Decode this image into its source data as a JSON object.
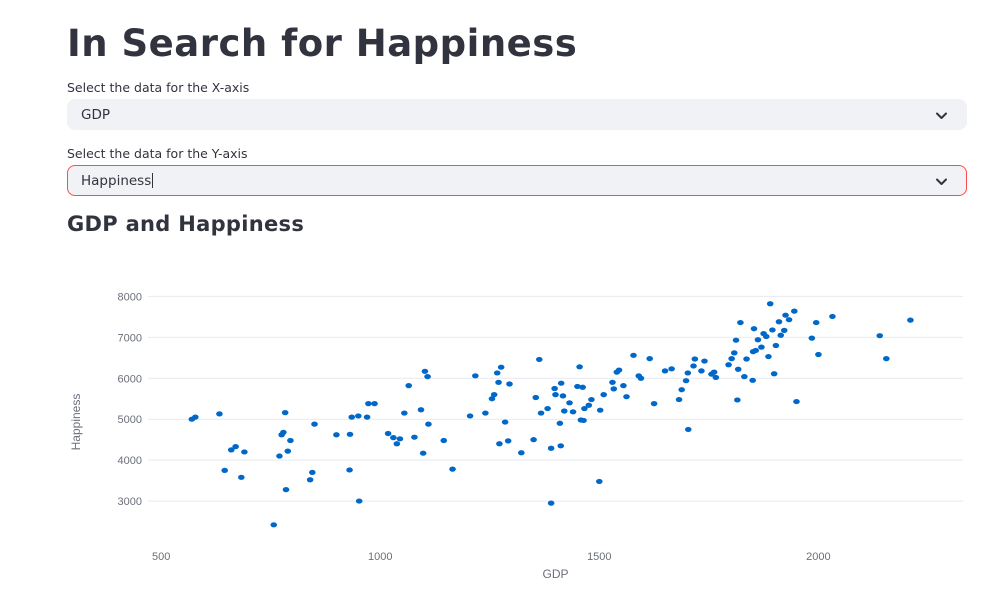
{
  "header": {
    "title": "In Search for Happiness"
  },
  "x_select": {
    "label": "Select the data for the X-axis",
    "value": "GDP",
    "icon": "chevron-down-icon"
  },
  "y_select": {
    "label": "Select the data for the Y-axis",
    "value": "Happiness",
    "icon": "chevron-down-icon",
    "accent": "#ff4b4b"
  },
  "chart_section": {
    "title": "GDP and Happiness"
  },
  "chart_data": {
    "type": "scatter",
    "title": "",
    "xlabel": "GDP",
    "ylabel": "Happiness",
    "xlim": [
      470,
      2330
    ],
    "ylim": [
      2000,
      8400
    ],
    "xticks": [
      500,
      1000,
      1500,
      2000
    ],
    "yticks": [
      3000,
      4000,
      5000,
      6000,
      7000,
      8000
    ],
    "grid": "horizontal",
    "color": "#0068c9",
    "points": [
      [
        570,
        5000
      ],
      [
        578,
        5050
      ],
      [
        633,
        5130
      ],
      [
        645,
        3750
      ],
      [
        660,
        4250
      ],
      [
        670,
        4330
      ],
      [
        683,
        3580
      ],
      [
        690,
        4200
      ],
      [
        757,
        2420
      ],
      [
        770,
        4100
      ],
      [
        775,
        4620
      ],
      [
        779,
        4680
      ],
      [
        783,
        5160
      ],
      [
        785,
        3280
      ],
      [
        789,
        4220
      ],
      [
        795,
        4480
      ],
      [
        840,
        3520
      ],
      [
        845,
        3700
      ],
      [
        850,
        4880
      ],
      [
        900,
        4620
      ],
      [
        930,
        3760
      ],
      [
        931,
        4630
      ],
      [
        935,
        5050
      ],
      [
        950,
        5080
      ],
      [
        952,
        3000
      ],
      [
        970,
        5050
      ],
      [
        973,
        5380
      ],
      [
        987,
        5380
      ],
      [
        1018,
        4650
      ],
      [
        1030,
        4550
      ],
      [
        1038,
        4400
      ],
      [
        1045,
        4520
      ],
      [
        1055,
        5150
      ],
      [
        1065,
        5820
      ],
      [
        1078,
        4560
      ],
      [
        1093,
        5230
      ],
      [
        1098,
        4170
      ],
      [
        1102,
        6170
      ],
      [
        1108,
        6040
      ],
      [
        1110,
        4880
      ],
      [
        1145,
        4480
      ],
      [
        1165,
        3780
      ],
      [
        1205,
        5080
      ],
      [
        1217,
        6060
      ],
      [
        1240,
        5150
      ],
      [
        1255,
        5500
      ],
      [
        1260,
        5600
      ],
      [
        1267,
        6130
      ],
      [
        1270,
        5900
      ],
      [
        1276,
        6270
      ],
      [
        1272,
        4400
      ],
      [
        1285,
        4930
      ],
      [
        1292,
        4470
      ],
      [
        1295,
        5860
      ],
      [
        1322,
        4180
      ],
      [
        1350,
        4500
      ],
      [
        1355,
        5530
      ],
      [
        1363,
        6460
      ],
      [
        1367,
        5150
      ],
      [
        1382,
        5260
      ],
      [
        1390,
        4290
      ],
      [
        1390,
        2950
      ],
      [
        1398,
        5750
      ],
      [
        1400,
        5600
      ],
      [
        1410,
        4900
      ],
      [
        1413,
        5880
      ],
      [
        1417,
        5570
      ],
      [
        1412,
        4350
      ],
      [
        1420,
        5200
      ],
      [
        1432,
        5400
      ],
      [
        1440,
        5180
      ],
      [
        1450,
        5800
      ],
      [
        1455,
        6280
      ],
      [
        1458,
        4980
      ],
      [
        1462,
        5780
      ],
      [
        1464,
        4970
      ],
      [
        1466,
        5260
      ],
      [
        1476,
        5340
      ],
      [
        1482,
        5480
      ],
      [
        1500,
        3480
      ],
      [
        1502,
        5220
      ],
      [
        1510,
        5600
      ],
      [
        1530,
        5900
      ],
      [
        1533,
        5740
      ],
      [
        1540,
        6150
      ],
      [
        1545,
        6200
      ],
      [
        1555,
        5820
      ],
      [
        1562,
        5550
      ],
      [
        1578,
        6560
      ],
      [
        1590,
        6060
      ],
      [
        1595,
        6000
      ],
      [
        1615,
        6480
      ],
      [
        1625,
        5380
      ],
      [
        1650,
        6180
      ],
      [
        1665,
        6230
      ],
      [
        1682,
        5480
      ],
      [
        1688,
        5720
      ],
      [
        1698,
        5940
      ],
      [
        1702,
        6130
      ],
      [
        1703,
        4750
      ],
      [
        1718,
        6470
      ],
      [
        1715,
        6300
      ],
      [
        1733,
        6180
      ],
      [
        1740,
        6420
      ],
      [
        1756,
        6100
      ],
      [
        1762,
        6150
      ],
      [
        1766,
        6020
      ],
      [
        1795,
        6330
      ],
      [
        1802,
        6480
      ],
      [
        1808,
        6620
      ],
      [
        1812,
        6930
      ],
      [
        1815,
        5470
      ],
      [
        1817,
        6220
      ],
      [
        1822,
        7360
      ],
      [
        1831,
        6040
      ],
      [
        1836,
        6470
      ],
      [
        1850,
        5950
      ],
      [
        1851,
        6650
      ],
      [
        1853,
        7210
      ],
      [
        1857,
        6680
      ],
      [
        1862,
        6940
      ],
      [
        1870,
        6760
      ],
      [
        1875,
        7090
      ],
      [
        1881,
        7020
      ],
      [
        1886,
        6530
      ],
      [
        1890,
        7820
      ],
      [
        1895,
        7180
      ],
      [
        1899,
        6110
      ],
      [
        1903,
        6800
      ],
      [
        1910,
        7380
      ],
      [
        1914,
        7050
      ],
      [
        1922,
        7170
      ],
      [
        1925,
        7540
      ],
      [
        1933,
        7430
      ],
      [
        1945,
        7640
      ],
      [
        1950,
        5430
      ],
      [
        1985,
        6980
      ],
      [
        1995,
        7360
      ],
      [
        2000,
        6580
      ],
      [
        2032,
        7510
      ],
      [
        2140,
        7040
      ],
      [
        2155,
        6480
      ],
      [
        2210,
        7420
      ]
    ]
  }
}
